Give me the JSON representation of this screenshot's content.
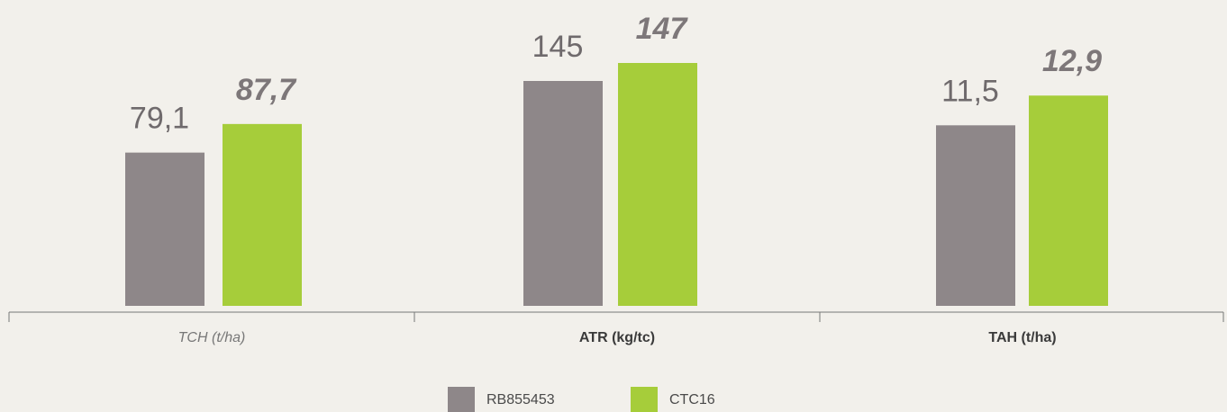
{
  "chart_data": [
    {
      "type": "bar",
      "xlabel": "TCH (t/ha)",
      "values": [
        79.1,
        87.7
      ],
      "value_labels": [
        "79,1",
        "87,7"
      ],
      "ylim": [
        33,
        125
      ]
    },
    {
      "type": "bar",
      "xlabel": "ATR (kg/tc)",
      "values": [
        145,
        147
      ],
      "ylim": [
        120,
        154
      ]
    },
    {
      "type": "bar",
      "xlabel": "TAH (t/ha)",
      "values": [
        11.5,
        12.9
      ],
      "value_labels": [
        "11,5",
        "12,9"
      ],
      "ylim": [
        3,
        17.4
      ]
    }
  ],
  "legend": [
    {
      "name": "RB855453",
      "color": "#8e8789"
    },
    {
      "name": "CTC16",
      "color": "#a6cd3a"
    }
  ]
}
